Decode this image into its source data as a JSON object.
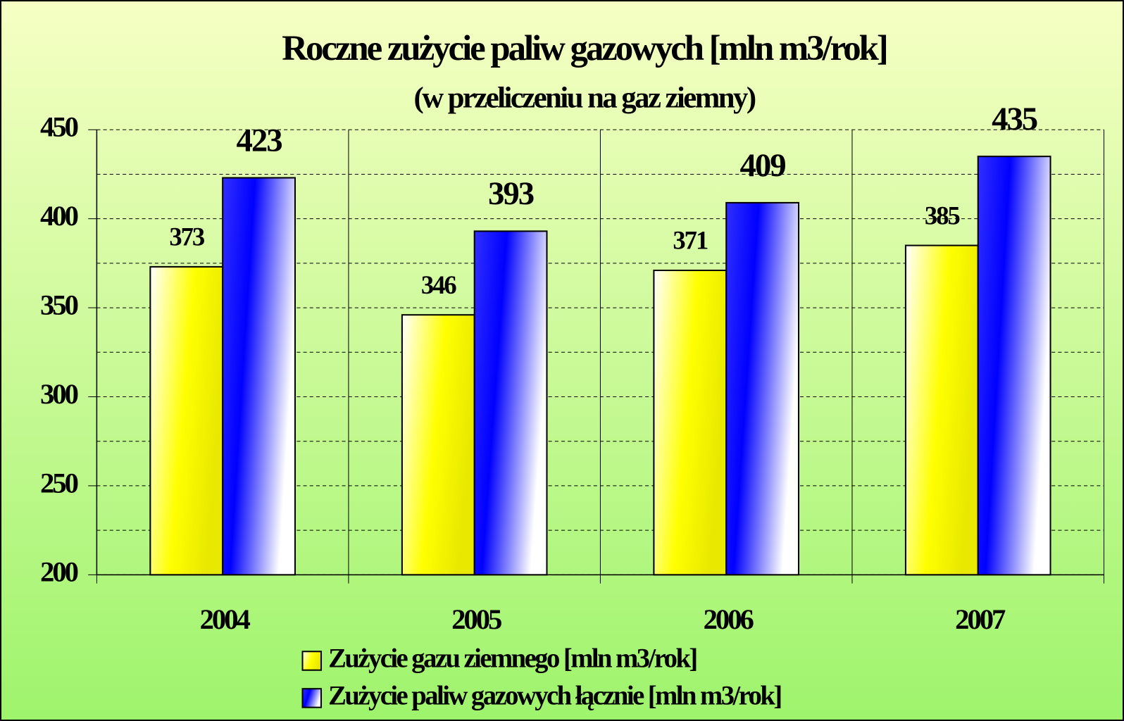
{
  "chart_data": {
    "type": "bar",
    "title": "Roczne zużycie paliw gazowych [mln m3/rok]",
    "subtitle": "(w przeliczeniu na gaz ziemny)",
    "categories": [
      "2004",
      "2005",
      "2006",
      "2007"
    ],
    "series": [
      {
        "name": "Zużycie gazu ziemnego [mln m3/rok]",
        "color": "#ffff00",
        "values": [
          373,
          346,
          371,
          385
        ]
      },
      {
        "name": "Zużycie paliw gazowych łącznie [mln m3/rok]",
        "color": "#0000ff",
        "values": [
          423,
          393,
          409,
          435
        ]
      }
    ],
    "ylim": [
      200,
      450
    ],
    "yticks": [
      200,
      250,
      300,
      350,
      400,
      450
    ],
    "minor_yticks": [
      225,
      275,
      325,
      375,
      425
    ],
    "grid": true,
    "legend": "bottom"
  }
}
